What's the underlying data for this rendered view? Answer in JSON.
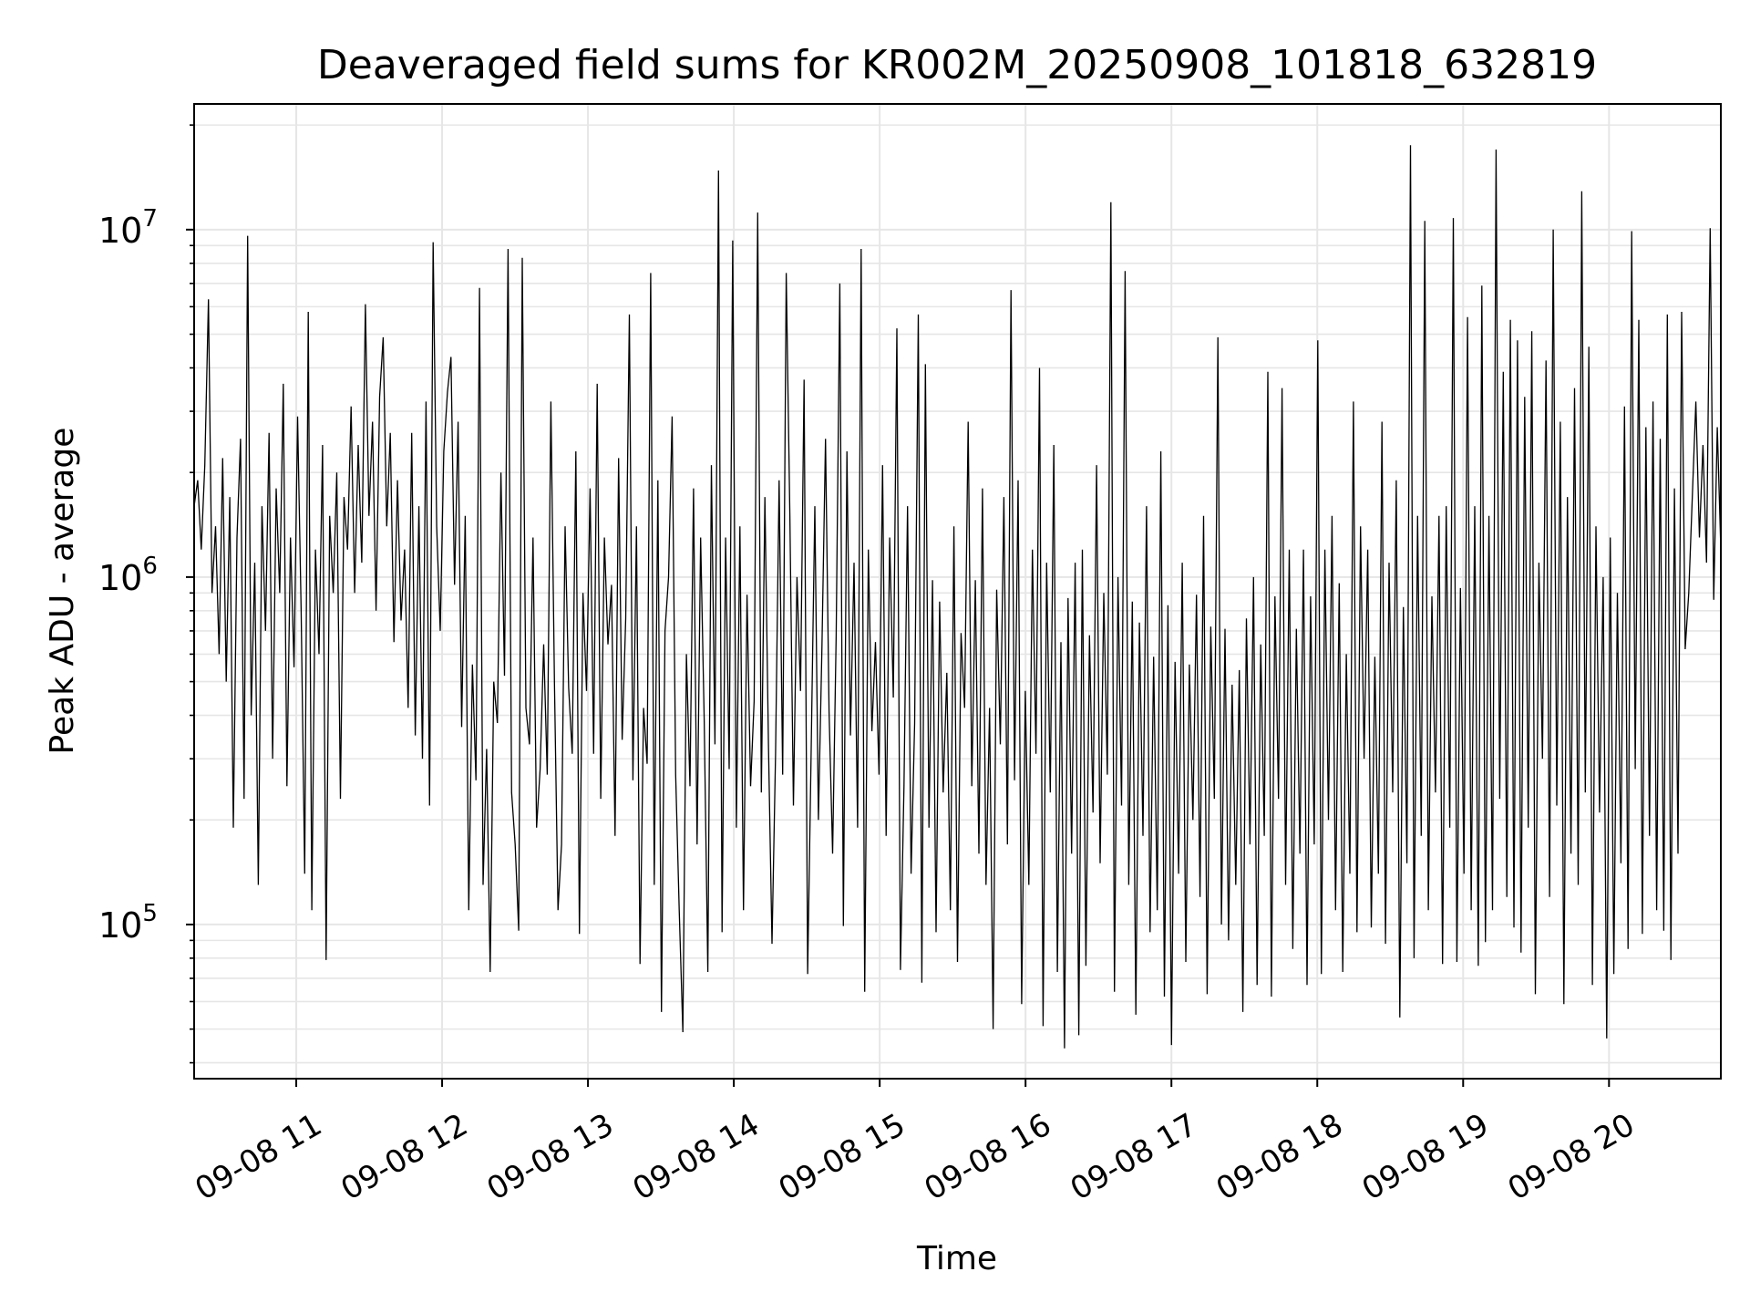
{
  "chart_data": {
    "type": "line",
    "title": "Deaveraged field sums for KR002M_20250908_101818_632819",
    "xlabel": "Time",
    "ylabel": "Peak ADU - average",
    "yscale": "log",
    "ylim": [
      36000,
      23000000
    ],
    "xlim": [
      "2025-09-08 10:18",
      "2025-09-08 20:46"
    ],
    "grid": true,
    "line_color": "#000000",
    "x_ticks": [
      "09-08 11",
      "09-08 12",
      "09-08 13",
      "09-08 14",
      "09-08 15",
      "09-08 16",
      "09-08 17",
      "09-08 18",
      "09-08 19",
      "09-08 20"
    ],
    "y_ticks": [
      {
        "base": "10",
        "exp": "5",
        "value": 100000
      },
      {
        "base": "10",
        "exp": "6",
        "value": 1000000
      },
      {
        "base": "10",
        "exp": "7",
        "value": 10000000
      }
    ],
    "series": [
      {
        "x_start": "2025-09-08 10:18",
        "x_end": "2025-09-08 20:46",
        "values": [
          1600000,
          1900000,
          1200000,
          2100000,
          6300000,
          900000,
          1400000,
          600000,
          2200000,
          500000,
          1700000,
          190000,
          1300000,
          2500000,
          230000,
          9600000,
          400000,
          1100000,
          130000,
          1600000,
          700000,
          2600000,
          300000,
          1800000,
          900000,
          3600000,
          250000,
          1300000,
          550000,
          2900000,
          800000,
          140000,
          5800000,
          110000,
          1200000,
          600000,
          2400000,
          79000,
          1500000,
          900000,
          2000000,
          230000,
          1700000,
          1200000,
          3100000,
          900000,
          2400000,
          1100000,
          6100000,
          1500000,
          2800000,
          800000,
          3300000,
          4900000,
          1400000,
          2600000,
          650000,
          1900000,
          750000,
          1200000,
          420000,
          2600000,
          350000,
          1600000,
          300000,
          3200000,
          220000,
          9200000,
          1400000,
          700000,
          2300000,
          3400000,
          4300000,
          950000,
          2800000,
          370000,
          1500000,
          110000,
          560000,
          260000,
          6800000,
          130000,
          320000,
          73000,
          500000,
          380000,
          2000000,
          520000,
          8800000,
          240000,
          170000,
          96000,
          8300000,
          420000,
          330000,
          1300000,
          190000,
          280000,
          640000,
          270000,
          3200000,
          500000,
          110000,
          170000,
          1400000,
          480000,
          310000,
          2300000,
          94000,
          900000,
          470000,
          1800000,
          310000,
          3600000,
          230000,
          1300000,
          640000,
          950000,
          180000,
          2200000,
          340000,
          760000,
          5700000,
          260000,
          1400000,
          77000,
          420000,
          290000,
          7500000,
          130000,
          1900000,
          56000,
          700000,
          1000000,
          2900000,
          270000,
          110000,
          49000,
          600000,
          250000,
          1800000,
          170000,
          1300000,
          390000,
          73000,
          2100000,
          330000,
          14800000,
          95000,
          1300000,
          280000,
          9300000,
          190000,
          1400000,
          110000,
          890000,
          250000,
          440000,
          11200000,
          240000,
          1700000,
          330000,
          88000,
          310000,
          1900000,
          270000,
          7500000,
          1500000,
          220000,
          1000000,
          470000,
          3700000,
          72000,
          320000,
          1600000,
          200000,
          630000,
          2500000,
          410000,
          160000,
          680000,
          7000000,
          99000,
          2300000,
          350000,
          1100000,
          190000,
          8800000,
          64000,
          1200000,
          360000,
          650000,
          270000,
          2100000,
          180000,
          1300000,
          450000,
          5200000,
          74000,
          250000,
          1600000,
          140000,
          380000,
          5700000,
          68000,
          4100000,
          190000,
          980000,
          95000,
          850000,
          240000,
          530000,
          110000,
          1400000,
          78000,
          690000,
          420000,
          2800000,
          250000,
          980000,
          160000,
          1800000,
          130000,
          420000,
          50000,
          920000,
          330000,
          1700000,
          170000,
          6700000,
          260000,
          1900000,
          59000,
          470000,
          130000,
          1200000,
          310000,
          4000000,
          51000,
          1100000,
          240000,
          2400000,
          73000,
          650000,
          44000,
          870000,
          160000,
          1100000,
          48000,
          1200000,
          76000,
          680000,
          210000,
          2100000,
          150000,
          900000,
          270000,
          12000000,
          64000,
          1000000,
          220000,
          7600000,
          130000,
          850000,
          55000,
          740000,
          180000,
          1600000,
          95000,
          590000,
          110000,
          2300000,
          62000,
          830000,
          45000,
          570000,
          140000,
          1100000,
          78000,
          560000,
          200000,
          890000,
          120000,
          1500000,
          63000,
          720000,
          230000,
          4900000,
          100000,
          710000,
          90000,
          490000,
          130000,
          540000,
          56000,
          760000,
          170000,
          1000000,
          67000,
          640000,
          180000,
          3900000,
          62000,
          880000,
          230000,
          3500000,
          130000,
          1200000,
          85000,
          710000,
          160000,
          1200000,
          67000,
          880000,
          170000,
          4800000,
          72000,
          1200000,
          200000,
          1500000,
          110000,
          960000,
          73000,
          600000,
          140000,
          3200000,
          95000,
          1400000,
          300000,
          1200000,
          98000,
          590000,
          140000,
          2800000,
          88000,
          1100000,
          240000,
          1900000,
          54000,
          820000,
          150000,
          17500000,
          80000,
          1500000,
          180000,
          10600000,
          110000,
          880000,
          240000,
          1500000,
          77000,
          1600000,
          190000,
          10800000,
          78000,
          930000,
          140000,
          5600000,
          110000,
          1600000,
          76000,
          6900000,
          89000,
          1500000,
          110000,
          17000000,
          230000,
          3900000,
          120000,
          5500000,
          98000,
          4800000,
          83000,
          3300000,
          190000,
          5100000,
          63000,
          1100000,
          300000,
          4200000,
          120000,
          10000000,
          220000,
          2800000,
          59000,
          1700000,
          160000,
          3500000,
          130000,
          12900000,
          240000,
          4600000,
          67000,
          1400000,
          210000,
          1000000,
          47000,
          1300000,
          72000,
          900000,
          150000,
          3100000,
          85000,
          9900000,
          280000,
          5500000,
          94000,
          2700000,
          180000,
          3200000,
          110000,
          2500000,
          96000,
          5700000,
          79000,
          1800000,
          160000,
          5800000,
          620000,
          900000,
          1700000,
          3200000,
          1300000,
          2400000,
          1100000,
          10100000,
          860000,
          2700000,
          1200000
        ]
      }
    ]
  }
}
